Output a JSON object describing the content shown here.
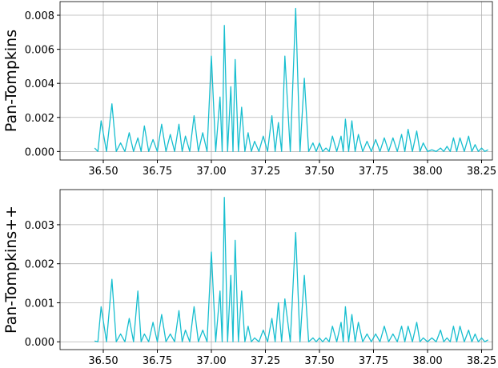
{
  "chart_data": [
    {
      "type": "line",
      "ylabel": "Pan-Tompkins",
      "x": [
        36.46,
        36.475,
        36.49,
        36.515,
        36.54,
        36.56,
        36.58,
        36.6,
        36.62,
        36.64,
        36.66,
        36.675,
        36.69,
        36.71,
        36.73,
        36.75,
        36.77,
        36.79,
        36.81,
        36.83,
        36.85,
        36.865,
        36.88,
        36.9,
        36.92,
        36.94,
        36.96,
        36.98,
        37.0,
        37.02,
        37.04,
        37.05,
        37.06,
        37.075,
        37.09,
        37.1,
        37.11,
        37.125,
        37.14,
        37.155,
        37.17,
        37.185,
        37.2,
        37.22,
        37.24,
        37.26,
        37.28,
        37.295,
        37.31,
        37.325,
        37.34,
        37.365,
        37.39,
        37.41,
        37.43,
        37.45,
        37.47,
        37.485,
        37.5,
        37.515,
        37.53,
        37.545,
        37.56,
        37.58,
        37.6,
        37.61,
        37.62,
        37.635,
        37.65,
        37.665,
        37.68,
        37.7,
        37.72,
        37.74,
        37.76,
        37.78,
        37.8,
        37.82,
        37.84,
        37.86,
        37.88,
        37.895,
        37.91,
        37.93,
        37.95,
        37.965,
        37.98,
        38.0,
        38.02,
        38.04,
        38.06,
        38.075,
        38.09,
        38.105,
        38.12,
        38.135,
        38.15,
        38.17,
        38.19,
        38.205,
        38.22,
        38.235,
        38.25,
        38.265,
        38.28
      ],
      "series": [
        {
          "color": "#17becf",
          "values": [
            0.0002,
            0,
            0.0018,
            0,
            0.0028,
            0,
            0.0005,
            0,
            0.0011,
            0,
            0.0008,
            0,
            0.0015,
            0,
            0.0007,
            0,
            0.0016,
            0,
            0.001,
            0,
            0.0016,
            0,
            0.0009,
            0,
            0.0021,
            0,
            0.0011,
            0,
            0.0056,
            0,
            0.0032,
            0,
            0.0074,
            0,
            0.0038,
            0,
            0.0054,
            0,
            0.0026,
            0,
            0.0011,
            0,
            0.0006,
            0,
            0.0009,
            0,
            0.0021,
            0,
            0.0017,
            0,
            0.0056,
            0,
            0.0084,
            0,
            0.0043,
            0,
            0.0005,
            0,
            0.0005,
            0,
            0.0002,
            0,
            0.0009,
            0,
            0.0009,
            0,
            0.0019,
            0,
            0.0018,
            0,
            0.001,
            0,
            0.0006,
            0,
            0.0007,
            0,
            0.0008,
            0,
            0.0008,
            0,
            0.001,
            0,
            0.0013,
            0,
            0.0012,
            0,
            0.0005,
            0,
            0.0001,
            0,
            0.0002,
            0,
            0.0003,
            0,
            0.0008,
            0,
            0.0008,
            0,
            0.0009,
            0,
            0.0004,
            0,
            0.0002,
            0,
            0.0001
          ]
        }
      ],
      "xlim": [
        36.3,
        38.3
      ],
      "xticks": [
        {
          "value": 36.5,
          "label": "36.50"
        },
        {
          "value": 36.75,
          "label": "36.75"
        },
        {
          "value": 37.0,
          "label": "37.00"
        },
        {
          "value": 37.25,
          "label": "37.25"
        },
        {
          "value": 37.5,
          "label": "37.50"
        },
        {
          "value": 37.75,
          "label": "37.75"
        },
        {
          "value": 38.0,
          "label": "38.00"
        },
        {
          "value": 38.25,
          "label": "38.25"
        }
      ],
      "ylim": [
        -0.0005,
        0.0088
      ],
      "yticks": [
        {
          "value": 0,
          "label": "0.000"
        },
        {
          "value": 0.002,
          "label": "0.002"
        },
        {
          "value": 0.004,
          "label": "0.004"
        },
        {
          "value": 0.006,
          "label": "0.006"
        },
        {
          "value": 0.008,
          "label": "0.008"
        }
      ],
      "grid": true
    },
    {
      "type": "line",
      "ylabel": "Pan-Tompkins++",
      "x": [
        36.46,
        36.475,
        36.49,
        36.515,
        36.54,
        36.56,
        36.58,
        36.6,
        36.62,
        36.64,
        36.66,
        36.675,
        36.69,
        36.71,
        36.73,
        36.75,
        36.77,
        36.79,
        36.81,
        36.83,
        36.85,
        36.865,
        36.88,
        36.9,
        36.92,
        36.94,
        36.96,
        36.98,
        37.0,
        37.02,
        37.04,
        37.05,
        37.06,
        37.075,
        37.09,
        37.1,
        37.11,
        37.125,
        37.14,
        37.155,
        37.17,
        37.185,
        37.2,
        37.22,
        37.24,
        37.26,
        37.28,
        37.295,
        37.31,
        37.325,
        37.34,
        37.365,
        37.39,
        37.41,
        37.43,
        37.45,
        37.47,
        37.485,
        37.5,
        37.515,
        37.53,
        37.545,
        37.56,
        37.58,
        37.6,
        37.61,
        37.62,
        37.635,
        37.65,
        37.665,
        37.68,
        37.7,
        37.72,
        37.74,
        37.76,
        37.78,
        37.8,
        37.82,
        37.84,
        37.86,
        37.88,
        37.895,
        37.91,
        37.93,
        37.95,
        37.965,
        37.98,
        38.0,
        38.02,
        38.04,
        38.06,
        38.075,
        38.09,
        38.105,
        38.12,
        38.135,
        38.15,
        38.17,
        38.19,
        38.205,
        38.22,
        38.235,
        38.25,
        38.265,
        38.28
      ],
      "series": [
        {
          "color": "#17becf",
          "values": [
            2e-05,
            0,
            0.0009,
            0,
            0.0016,
            0,
            0.0002,
            0,
            0.0006,
            0,
            0.0013,
            0,
            0.0002,
            0,
            0.0005,
            0,
            0.0007,
            0,
            0.0002,
            0,
            0.0008,
            0,
            0.0003,
            0,
            0.0009,
            0,
            0.0003,
            0,
            0.0023,
            0,
            0.0013,
            0,
            0.0037,
            0,
            0.0017,
            0,
            0.0026,
            0,
            0.0013,
            0,
            0.0004,
            0,
            0.0001,
            0,
            0.0003,
            0,
            0.0006,
            0,
            0.001,
            0,
            0.0011,
            0,
            0.0028,
            0,
            0.0017,
            0,
            0.0001,
            0,
            0.0001,
            0,
            0.0001,
            0,
            0.0004,
            0,
            0.0005,
            0,
            0.0009,
            0,
            0.0007,
            0,
            0.0005,
            0,
            0.0002,
            0,
            0.0002,
            0,
            0.0004,
            0,
            0.0002,
            0,
            0.0004,
            0,
            0.0004,
            0,
            0.0005,
            0,
            0.0001,
            0,
            0.0001,
            0,
            0.0003,
            0,
            0.0001,
            0,
            0.0004,
            0,
            0.0004,
            0,
            0.0003,
            0,
            0.0002,
            0,
            0.0001,
            0,
            5e-05
          ]
        }
      ],
      "xlim": [
        36.3,
        38.3
      ],
      "xticks": [
        {
          "value": 36.5,
          "label": "36.50"
        },
        {
          "value": 36.75,
          "label": "36.75"
        },
        {
          "value": 37.0,
          "label": "37.00"
        },
        {
          "value": 37.25,
          "label": "37.25"
        },
        {
          "value": 37.5,
          "label": "37.50"
        },
        {
          "value": 37.75,
          "label": "37.75"
        },
        {
          "value": 38.0,
          "label": "38.00"
        },
        {
          "value": 38.25,
          "label": "38.25"
        }
      ],
      "ylim": [
        -0.0002,
        0.0039
      ],
      "yticks": [
        {
          "value": 0,
          "label": "0.000"
        },
        {
          "value": 0.001,
          "label": "0.001"
        },
        {
          "value": 0.002,
          "label": "0.002"
        },
        {
          "value": 0.003,
          "label": "0.003"
        }
      ],
      "grid": true
    }
  ]
}
